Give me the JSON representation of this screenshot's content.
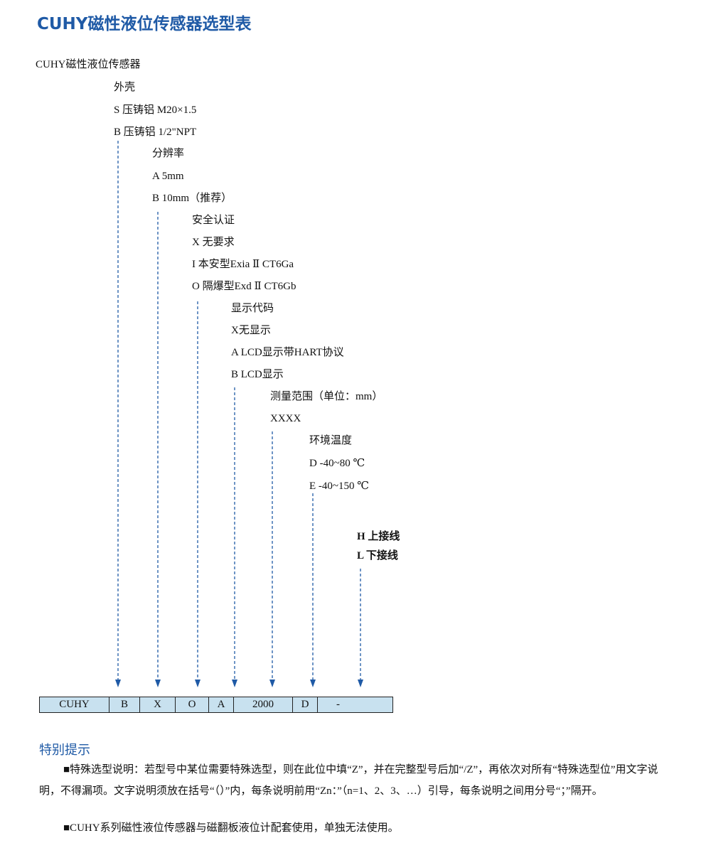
{
  "title": "CUHY磁性液位传感器选型表",
  "root": "CUHY磁性液位传感器",
  "housing": {
    "heading": "外壳",
    "options": [
      "S  压铸铝 M20×1.5",
      "B  压铸铝 1/2\"NPT"
    ]
  },
  "resolution": {
    "heading": "分辨率",
    "options": [
      "A  5mm",
      "B  10mm（推荐）"
    ]
  },
  "safety": {
    "heading": "安全认证",
    "options": [
      "X  无要求",
      "I  本安型Exia Ⅱ CT6Ga",
      "O  隔爆型Exd Ⅱ CT6Gb"
    ]
  },
  "display": {
    "heading": "显示代码",
    "options": [
      "X无显示",
      "A  LCD显示带HART协议",
      "B  LCD显示"
    ]
  },
  "range": {
    "heading": "测量范围（单位：mm）",
    "options": [
      "XXXX"
    ]
  },
  "temp": {
    "heading": "环境温度",
    "options": [
      "D  -40~80 ℃",
      "E  -40~150 ℃"
    ]
  },
  "wiring": {
    "options": [
      "H  上接线",
      "L  下接线"
    ]
  },
  "code": [
    "CUHY",
    "B",
    "X",
    "O",
    "A",
    "2000",
    "D",
    "-"
  ],
  "arrow_color": "#1f5aa6",
  "table_fill": "#c8e1ef",
  "notes": {
    "title": "特别提示",
    "p1": "■特殊选型说明：若型号中某位需要特殊选型，则在此位中填“Z”，并在完整型号后加“/Z”，再依次对所有“特殊选型位”用文字说明，不得漏项。文字说明须放在括号“（）”内，每条说明前用“Zn：”（n=1、2、3、…）引导，每条说明之间用分号“；”隔开。",
    "p2": "■CUHY系列磁性液位传感器与磁翻板液位计配套使用，单独无法使用。"
  }
}
